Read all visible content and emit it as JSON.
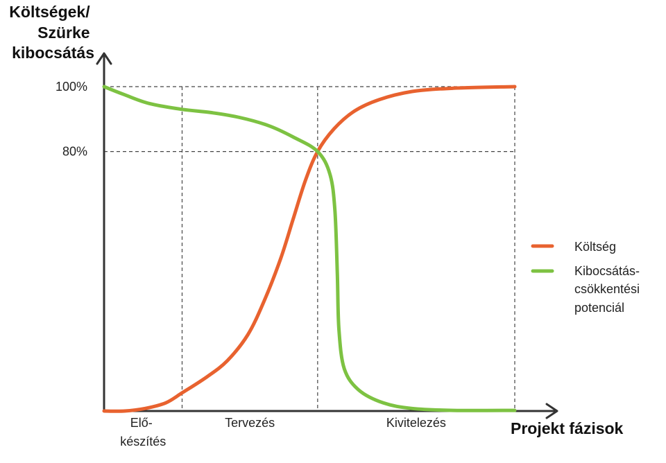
{
  "chart_data": {
    "type": "line",
    "ylabel": [
      "Költségek/",
      "Szürke",
      "kibocsátás"
    ],
    "xlabel": "Projekt fázisok",
    "y_ticks": [
      {
        "value": 100,
        "label": "100%"
      },
      {
        "value": 80,
        "label": "80%"
      }
    ],
    "ylim": [
      0,
      100
    ],
    "xlim": [
      0,
      10
    ],
    "phase_boundaries": [
      1.9,
      5.2
    ],
    "phase_end": 10,
    "phases": [
      {
        "label_lines": [
          "Elő-",
          "készítés"
        ],
        "center": 0.95
      },
      {
        "label_lines": [
          "Tervezés"
        ],
        "center": 3.55
      },
      {
        "label_lines": [
          "Kivitelezés"
        ],
        "center": 7.6
      }
    ],
    "series": [
      {
        "name": "Költség",
        "color": "#E8622F",
        "points": [
          [
            0,
            0
          ],
          [
            0.5,
            0
          ],
          [
            1.0,
            0.8
          ],
          [
            1.5,
            2.5
          ],
          [
            1.9,
            5.6
          ],
          [
            2.5,
            10.5
          ],
          [
            3.0,
            15.5
          ],
          [
            3.5,
            23.5
          ],
          [
            3.9,
            34
          ],
          [
            4.3,
            47
          ],
          [
            4.6,
            59
          ],
          [
            4.9,
            71
          ],
          [
            5.2,
            80
          ],
          [
            5.6,
            87
          ],
          [
            6.1,
            92.5
          ],
          [
            6.7,
            96
          ],
          [
            7.5,
            98.5
          ],
          [
            8.5,
            99.5
          ],
          [
            10.0,
            100
          ]
        ]
      },
      {
        "name": "Kibocsátás-csökkentési potenciál",
        "legend_lines": [
          "Kibocsátás-",
          "csökkentési",
          "potenciál"
        ],
        "color": "#7DC242",
        "points": [
          [
            0,
            100
          ],
          [
            0.5,
            97.5
          ],
          [
            1.1,
            94.8
          ],
          [
            1.9,
            93
          ],
          [
            2.6,
            92
          ],
          [
            3.3,
            90.5
          ],
          [
            4.0,
            88
          ],
          [
            4.6,
            84.5
          ],
          [
            5.2,
            80
          ],
          [
            5.5,
            73
          ],
          [
            5.62,
            62
          ],
          [
            5.68,
            42
          ],
          [
            5.72,
            25
          ],
          [
            5.85,
            13
          ],
          [
            6.2,
            6.5
          ],
          [
            6.8,
            2.5
          ],
          [
            7.5,
            0.8
          ],
          [
            8.5,
            0.2
          ],
          [
            10.0,
            0.2
          ]
        ]
      }
    ],
    "legend_position": "right"
  }
}
